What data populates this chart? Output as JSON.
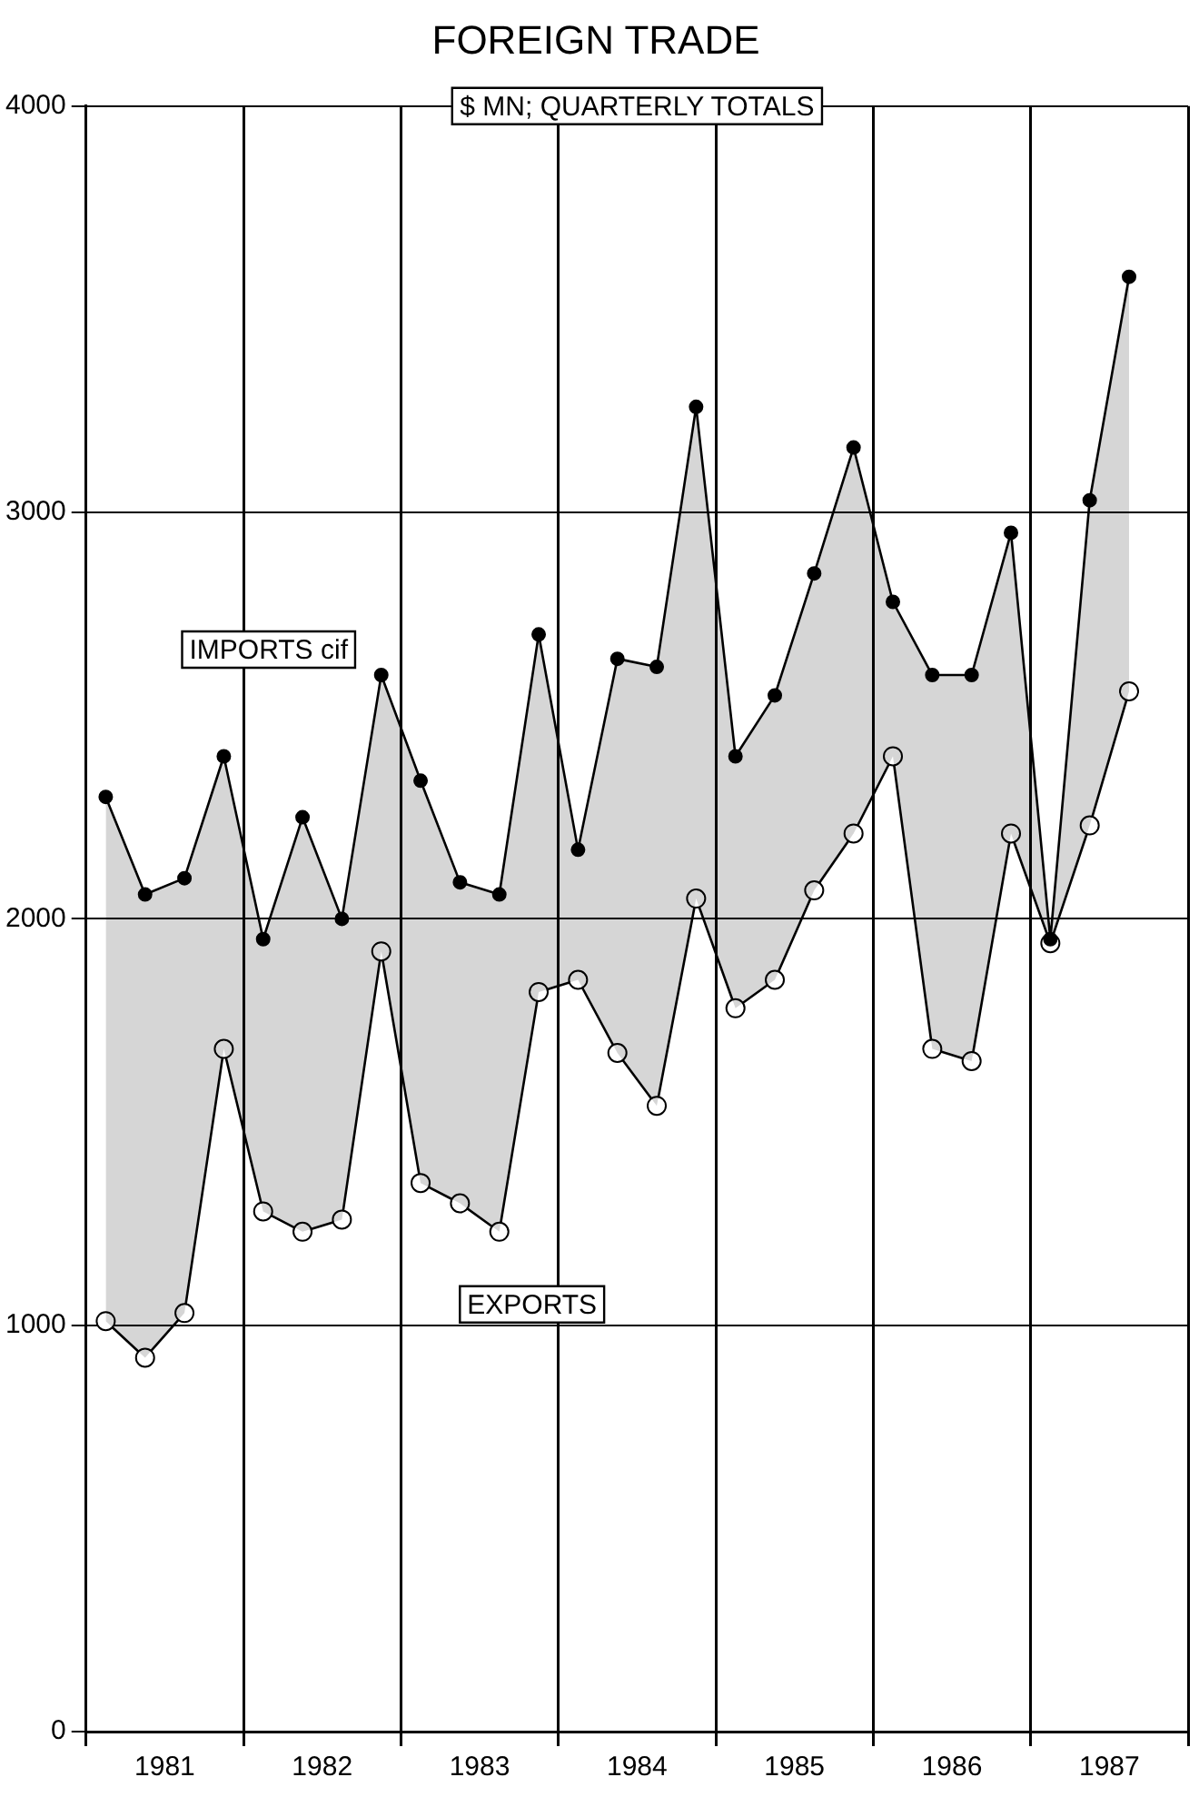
{
  "chart_data": {
    "type": "line",
    "title": "FOREIGN TRADE",
    "subtitle": "$ MN; QUARTERLY TOTALS",
    "x": [
      1981.125,
      1981.375,
      1981.625,
      1981.875,
      1982.125,
      1982.375,
      1982.625,
      1982.875,
      1983.125,
      1983.375,
      1983.625,
      1983.875,
      1984.125,
      1984.375,
      1984.625,
      1984.875,
      1985.125,
      1985.375,
      1985.625,
      1985.875,
      1986.125,
      1986.375,
      1986.625,
      1986.875,
      1987.125,
      1987.375,
      1987.625
    ],
    "series": [
      {
        "name": "IMPORTS cif",
        "type": "area",
        "color": "#000000",
        "values": [
          2300,
          2060,
          2100,
          2400,
          1950,
          2250,
          2000,
          2600,
          2340,
          2090,
          2060,
          2700,
          2170,
          2640,
          2620,
          3260,
          2400,
          2550,
          2850,
          3160,
          2780,
          2600,
          2600,
          2950,
          1950,
          3030,
          3580
        ]
      },
      {
        "name": "EXPORTS",
        "color": "#000000",
        "values": [
          1010,
          920,
          1030,
          1680,
          1280,
          1230,
          1260,
          1920,
          1350,
          1300,
          1230,
          1820,
          1850,
          1670,
          1540,
          2050,
          1780,
          1850,
          2070,
          2210,
          2400,
          1680,
          1650,
          2210,
          1940,
          2230,
          2560
        ]
      }
    ],
    "xlim": [
      1981,
      1988
    ],
    "xticks": [
      {
        "value": 1981,
        "label": null
      },
      {
        "value": 1981.5,
        "label": "1981"
      },
      {
        "value": 1982,
        "label": null
      },
      {
        "value": 1982.5,
        "label": "1982"
      },
      {
        "value": 1983,
        "label": null
      },
      {
        "value": 1983.5,
        "label": "1983"
      },
      {
        "value": 1984,
        "label": null
      },
      {
        "value": 1984.5,
        "label": "1984"
      },
      {
        "value": 1985,
        "label": null
      },
      {
        "value": 1985.5,
        "label": "1985"
      },
      {
        "value": 1986,
        "label": null
      },
      {
        "value": 1986.5,
        "label": "1986"
      },
      {
        "value": 1987,
        "label": null
      },
      {
        "value": 1987.5,
        "label": "1987"
      },
      {
        "value": 1988,
        "label": null
      }
    ],
    "ylim": [
      0,
      4000
    ],
    "yticks": [
      0,
      1000,
      2000,
      3000,
      4000
    ],
    "grid": true,
    "marker": "circle",
    "line_style": "solid",
    "legend": false
  }
}
